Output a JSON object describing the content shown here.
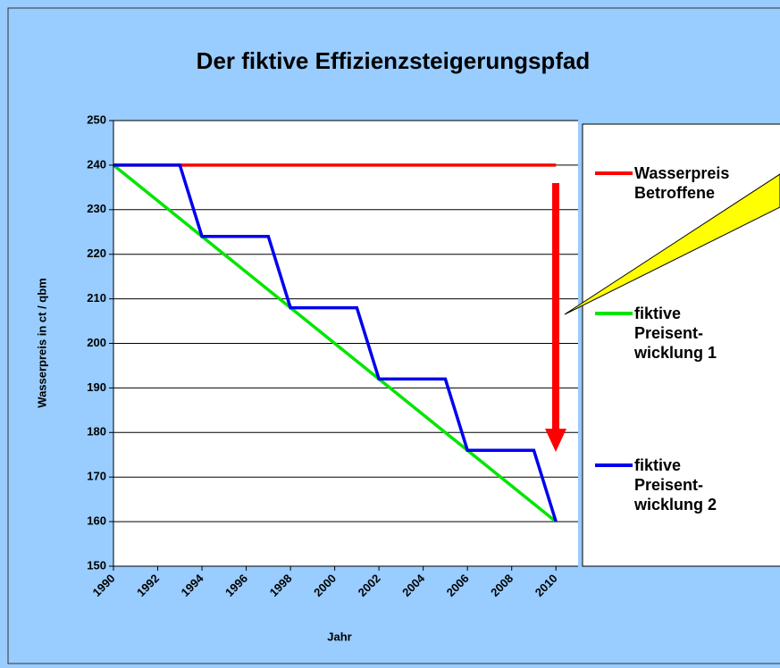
{
  "chart_data": {
    "type": "line",
    "title": "Der fiktive Effizienzsteigerungspfad",
    "x_label": "Jahr",
    "y_label": "Wasserpreis in ct / qbm",
    "series": [
      {
        "name": "Wasserpreis Betroffene",
        "color": "#ff0000",
        "x": [
          1990,
          2010
        ],
        "values": [
          240,
          240
        ]
      },
      {
        "name": "fiktive Preisent-wicklung 1",
        "color": "#00e600",
        "x": [
          1990,
          2010
        ],
        "values": [
          240,
          160
        ]
      },
      {
        "name": "fiktive Preisent-wicklung 2",
        "color": "#0000ee",
        "x": [
          1990,
          1993,
          1994,
          1997,
          1998,
          2001,
          2002,
          2005,
          2006,
          2009,
          2010
        ],
        "values": [
          240,
          240,
          224,
          224,
          208,
          208,
          192,
          192,
          176,
          176,
          160
        ]
      }
    ],
    "xlim": [
      1990,
      2011
    ],
    "xticks": [
      1990,
      1992,
      1994,
      1996,
      1998,
      2000,
      2002,
      2004,
      2006,
      2008,
      2010
    ],
    "ylim": [
      150,
      250
    ],
    "yticks": [
      150,
      160,
      170,
      180,
      190,
      200,
      210,
      220,
      230,
      240,
      250
    ],
    "grid": true,
    "legend": "right"
  }
}
